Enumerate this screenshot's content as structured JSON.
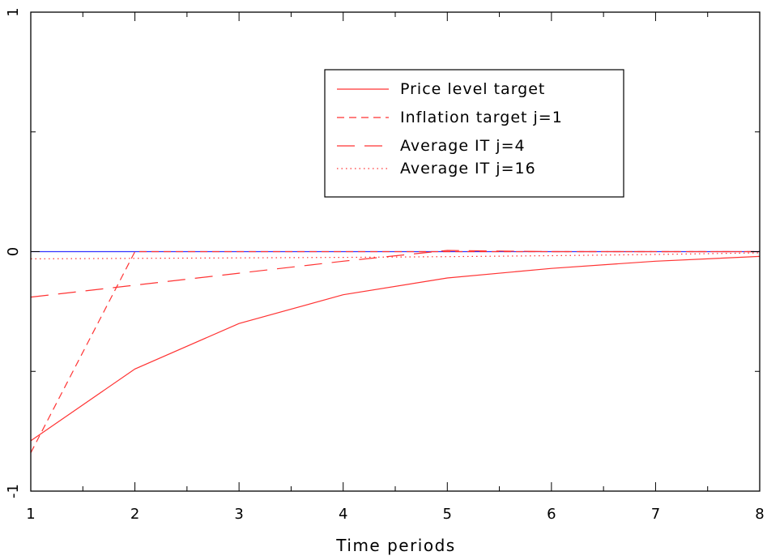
{
  "chart_data": {
    "type": "line",
    "title": "",
    "xlabel": "Time periods",
    "ylabel": "",
    "x": [
      1,
      2,
      3,
      4,
      5,
      6,
      7,
      8
    ],
    "xlim": [
      1,
      8
    ],
    "ylim": [
      -1,
      1
    ],
    "xticks": [
      "1",
      "2",
      "3",
      "4",
      "5",
      "6",
      "7",
      "8"
    ],
    "yticks": [
      {
        "value": -1,
        "label": "-1"
      },
      {
        "value": 0,
        "label": "0"
      },
      {
        "value": 1,
        "label": "1"
      }
    ],
    "grid": false,
    "legend_position": "top-right",
    "zero_line_color": "#3333ff",
    "series": [
      {
        "name": "Price level target",
        "style": "solid",
        "color": "#ff3333",
        "values": [
          -0.79,
          -0.49,
          -0.3,
          -0.18,
          -0.11,
          -0.07,
          -0.04,
          -0.02
        ]
      },
      {
        "name": "Inflation target j=1",
        "style": "dashed",
        "color": "#ff3333",
        "values": [
          -0.84,
          0.0,
          0.0,
          0.0,
          0.0,
          0.0,
          0.0,
          0.0
        ]
      },
      {
        "name": "Average IT j=4",
        "style": "longdash",
        "color": "#ff3333",
        "values": [
          -0.19,
          -0.14,
          -0.09,
          -0.04,
          0.005,
          0.0,
          0.0,
          0.0
        ]
      },
      {
        "name": "Average IT j=16",
        "style": "dotted",
        "color": "#ff3333",
        "values": [
          -0.03,
          -0.028,
          -0.026,
          -0.024,
          -0.021,
          -0.017,
          -0.012,
          -0.005
        ]
      }
    ]
  }
}
